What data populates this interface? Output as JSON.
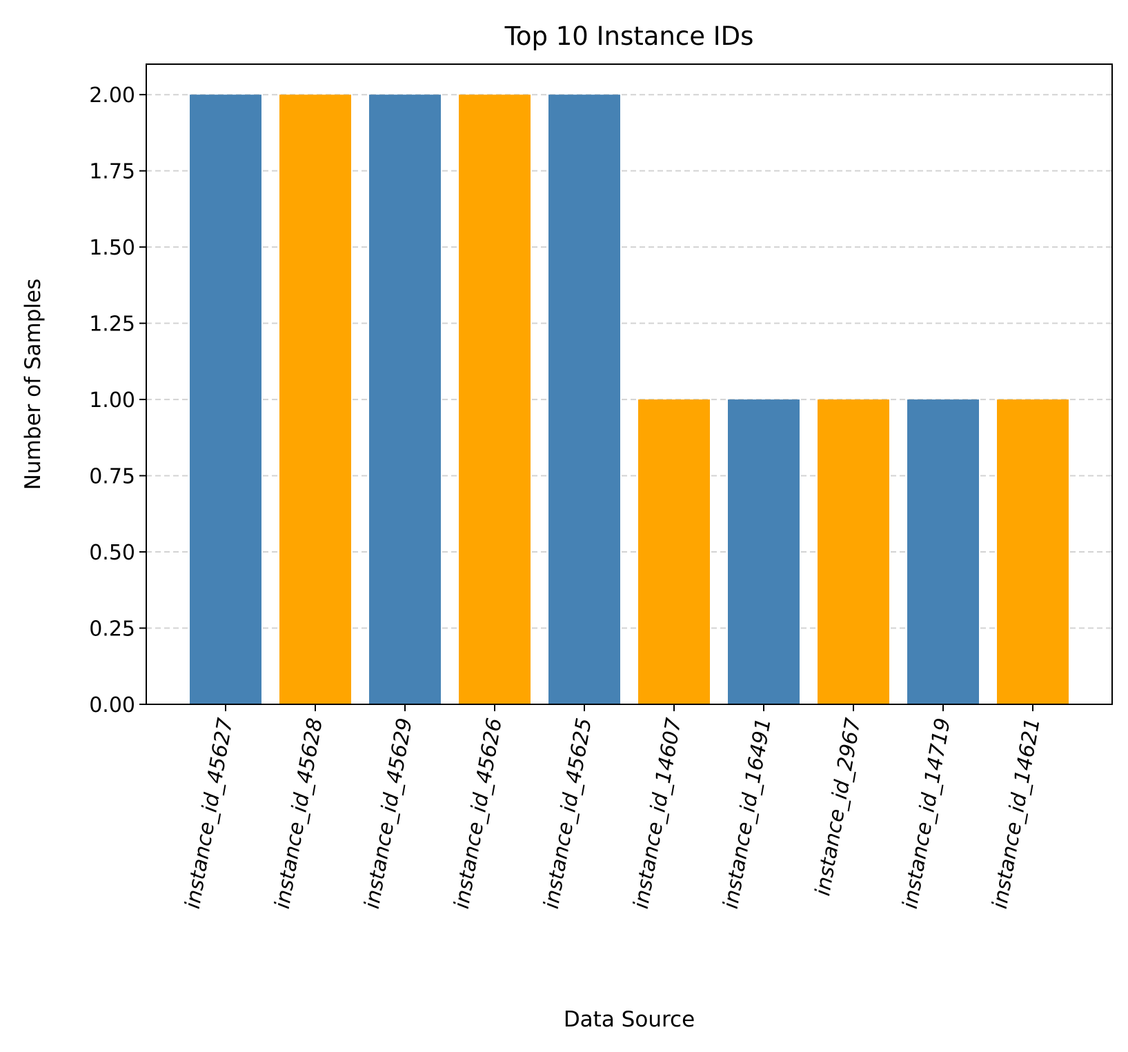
{
  "chart_data": {
    "type": "bar",
    "title": "Top 10 Instance IDs",
    "xlabel": "Data Source",
    "ylabel": "Number of Samples",
    "categories": [
      "instance_id_45627",
      "instance_id_45628",
      "instance_id_45629",
      "instance_id_45626",
      "instance_id_45625",
      "instance_id_14607",
      "instance_id_16491",
      "instance_id_2967",
      "instance_id_14719",
      "instance_id_14621"
    ],
    "values": [
      2,
      2,
      2,
      2,
      2,
      1,
      1,
      1,
      1,
      1
    ],
    "bar_colors": [
      "#4682b4",
      "#ffa500",
      "#4682b4",
      "#ffa500",
      "#4682b4",
      "#ffa500",
      "#4682b4",
      "#ffa500",
      "#4682b4",
      "#ffa500"
    ],
    "ylim": [
      0,
      2.1
    ],
    "yticks": [
      "0.00",
      "0.25",
      "0.50",
      "0.75",
      "1.00",
      "1.25",
      "1.50",
      "1.75",
      "2.00"
    ],
    "grid": "y-dashed",
    "grid_color": "#d3d3d3"
  }
}
